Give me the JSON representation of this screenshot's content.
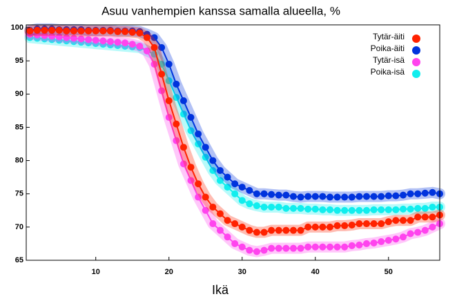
{
  "chart_data": {
    "type": "line",
    "title": "Asuu vanhempien kanssa samalla alueella, %",
    "x_label": "Ikä",
    "x": [
      1,
      2,
      3,
      4,
      5,
      6,
      7,
      8,
      9,
      10,
      11,
      12,
      13,
      14,
      15,
      16,
      17,
      18,
      19,
      20,
      21,
      22,
      23,
      24,
      25,
      26,
      27,
      28,
      29,
      30,
      31,
      32,
      33,
      34,
      35,
      36,
      37,
      38,
      39,
      40,
      41,
      42,
      43,
      44,
      45,
      46,
      47,
      48,
      49,
      50,
      51,
      52,
      53,
      54,
      55,
      56,
      57
    ],
    "series": [
      {
        "name": "Tytär-äiti",
        "color": "#ff2200",
        "values": [
          99.5,
          99.6,
          99.6,
          99.6,
          99.6,
          99.5,
          99.5,
          99.5,
          99.5,
          99.5,
          99.5,
          99.5,
          99.4,
          99.4,
          99.3,
          99.2,
          98.5,
          97,
          93,
          89,
          85.5,
          82,
          79,
          76.5,
          74.5,
          73,
          72,
          71,
          70.5,
          70,
          69.5,
          69.2,
          69.2,
          69.5,
          69.5,
          69.5,
          69.5,
          69.5,
          70,
          70,
          70,
          70,
          70.2,
          70.2,
          70.3,
          70.5,
          70.5,
          70.5,
          70.5,
          70.8,
          71,
          71,
          71,
          71.5,
          71.5,
          71.5,
          71.8
        ]
      },
      {
        "name": "Poika-äiti",
        "color": "#0033dd",
        "values": [
          99.6,
          99.8,
          99.8,
          99.8,
          99.7,
          99.7,
          99.7,
          99.7,
          99.6,
          99.6,
          99.6,
          99.6,
          99.5,
          99.5,
          99.5,
          99.4,
          99,
          98.5,
          97,
          94.5,
          91.5,
          89,
          86.5,
          84,
          82,
          80,
          78.5,
          77.5,
          76.5,
          76,
          75.5,
          75,
          75,
          74.9,
          74.8,
          74.8,
          74.6,
          74.5,
          74.6,
          74.6,
          74.6,
          74.5,
          74.5,
          74.5,
          74.5,
          74.6,
          74.6,
          74.6,
          74.6,
          74.7,
          74.7,
          74.8,
          75,
          75,
          75.1,
          75.2,
          75
        ]
      },
      {
        "name": "Tytär-isä",
        "color": "#ff44ee",
        "values": [
          99,
          98.9,
          98.8,
          98.7,
          98.6,
          98.5,
          98.4,
          98.3,
          98.2,
          98.1,
          98,
          97.9,
          97.8,
          97.7,
          97.5,
          97.2,
          96.5,
          94.5,
          90.5,
          86.5,
          83,
          79.5,
          77,
          74.5,
          72.5,
          70.5,
          69.5,
          68.5,
          67.5,
          67,
          66.5,
          66.3,
          66.5,
          66.8,
          66.8,
          66.8,
          66.8,
          66.8,
          67,
          67,
          67,
          67,
          67,
          67,
          67.2,
          67.3,
          67.5,
          67.6,
          67.8,
          68,
          68.2,
          68.5,
          69,
          69.2,
          69.5,
          70,
          70.5
        ]
      },
      {
        "name": "Poika-isä",
        "color": "#11eeee",
        "values": [
          98.5,
          98.4,
          98.3,
          98.2,
          98.1,
          98,
          97.9,
          97.8,
          97.7,
          97.6,
          97.5,
          97.4,
          97.3,
          97.2,
          97.1,
          97,
          96.5,
          96,
          94.5,
          92,
          89.5,
          87,
          84.5,
          82.5,
          80.5,
          78.5,
          77,
          76,
          75,
          74,
          73.5,
          73.2,
          73,
          73,
          73,
          72.8,
          72.8,
          72.8,
          72.7,
          72.7,
          72.6,
          72.6,
          72.5,
          72.5,
          72.5,
          72.5,
          72.5,
          72.6,
          72.6,
          72.6,
          72.6,
          72.7,
          72.7,
          72.8,
          72.8,
          73,
          73
        ]
      }
    ],
    "xlim": [
      0.5,
      57
    ],
    "xticks": [
      10,
      20,
      30,
      40,
      50
    ],
    "ylim": [
      65,
      100
    ],
    "yticks": [
      65,
      70,
      75,
      80,
      85,
      90,
      95,
      100
    ],
    "legend": "top-right"
  }
}
